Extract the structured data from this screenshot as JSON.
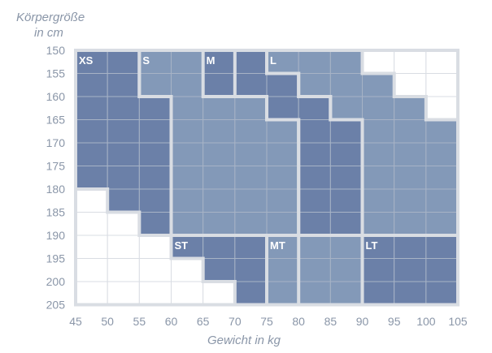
{
  "chart_data": {
    "type": "heatmap",
    "xlabel": "Gewicht in kg",
    "ylabel": [
      "Körpergröße",
      "in cm"
    ],
    "x_ticks": [
      45,
      50,
      55,
      60,
      65,
      70,
      75,
      80,
      85,
      90,
      95,
      100,
      105
    ],
    "y_ticks": [
      150,
      155,
      160,
      165,
      170,
      175,
      180,
      185,
      190,
      195,
      200,
      205
    ],
    "xlim": [
      45,
      105
    ],
    "ylim": [
      150,
      205
    ],
    "cell_size": {
      "weight_kg": 5,
      "height_cm": 5
    },
    "colors": {
      "dark": "#6b80a8",
      "light": "#8399b8",
      "empty": "#ffffff",
      "grid": "#a7b3c6",
      "border": "#d9dde3"
    },
    "regions": [
      {
        "name": "XS",
        "tone": "dark",
        "cells": [
          [
            45,
            150
          ],
          [
            50,
            150
          ],
          [
            45,
            155
          ],
          [
            50,
            155
          ],
          [
            45,
            160
          ],
          [
            50,
            160
          ],
          [
            55,
            160
          ],
          [
            45,
            165
          ],
          [
            50,
            165
          ],
          [
            55,
            165
          ],
          [
            45,
            170
          ],
          [
            50,
            170
          ],
          [
            55,
            170
          ],
          [
            45,
            175
          ],
          [
            50,
            175
          ],
          [
            55,
            175
          ],
          [
            50,
            180
          ],
          [
            55,
            180
          ],
          [
            55,
            185
          ]
        ]
      },
      {
        "name": "S",
        "tone": "light",
        "cells": [
          [
            55,
            150
          ],
          [
            60,
            150
          ],
          [
            65,
            150
          ],
          [
            55,
            155
          ],
          [
            60,
            155
          ],
          [
            65,
            155
          ],
          [
            60,
            160
          ],
          [
            65,
            160
          ],
          [
            70,
            160
          ],
          [
            60,
            165
          ],
          [
            65,
            165
          ],
          [
            70,
            165
          ],
          [
            75,
            165
          ],
          [
            60,
            170
          ],
          [
            65,
            170
          ],
          [
            70,
            170
          ],
          [
            75,
            170
          ],
          [
            60,
            175
          ],
          [
            65,
            175
          ],
          [
            70,
            175
          ],
          [
            75,
            175
          ],
          [
            60,
            180
          ],
          [
            65,
            180
          ],
          [
            70,
            180
          ],
          [
            75,
            180
          ],
          [
            60,
            185
          ],
          [
            65,
            185
          ],
          [
            70,
            185
          ],
          [
            75,
            185
          ]
        ]
      },
      {
        "name": "M",
        "tone": "dark",
        "cells": [
          [
            65,
            150
          ],
          [
            70,
            150
          ],
          [
            65,
            155
          ],
          [
            70,
            155
          ],
          [
            75,
            155
          ],
          [
            75,
            160
          ],
          [
            80,
            160
          ],
          [
            80,
            165
          ],
          [
            85,
            165
          ],
          [
            80,
            170
          ],
          [
            85,
            170
          ],
          [
            80,
            175
          ],
          [
            85,
            175
          ],
          [
            80,
            180
          ],
          [
            85,
            180
          ],
          [
            80,
            185
          ],
          [
            85,
            185
          ]
        ]
      },
      {
        "name": "L",
        "tone": "light",
        "cells": [
          [
            75,
            150
          ],
          [
            80,
            150
          ],
          [
            85,
            150
          ],
          [
            80,
            155
          ],
          [
            85,
            155
          ],
          [
            90,
            155
          ],
          [
            85,
            160
          ],
          [
            90,
            160
          ],
          [
            95,
            160
          ],
          [
            90,
            165
          ],
          [
            95,
            165
          ],
          [
            100,
            165
          ],
          [
            90,
            170
          ],
          [
            95,
            170
          ],
          [
            100,
            170
          ],
          [
            90,
            175
          ],
          [
            95,
            175
          ],
          [
            100,
            175
          ],
          [
            90,
            180
          ],
          [
            95,
            180
          ],
          [
            100,
            180
          ],
          [
            90,
            185
          ],
          [
            95,
            185
          ],
          [
            100,
            185
          ]
        ]
      },
      {
        "name": "ST",
        "tone": "dark",
        "cells": [
          [
            60,
            190
          ],
          [
            65,
            190
          ],
          [
            70,
            190
          ],
          [
            75,
            190
          ],
          [
            65,
            195
          ],
          [
            70,
            195
          ],
          [
            75,
            195
          ],
          [
            70,
            200
          ],
          [
            75,
            200
          ]
        ]
      },
      {
        "name": "MT",
        "tone": "light",
        "cells": [
          [
            75,
            190
          ],
          [
            80,
            190
          ],
          [
            85,
            190
          ],
          [
            75,
            195
          ],
          [
            80,
            195
          ],
          [
            85,
            195
          ],
          [
            75,
            200
          ],
          [
            80,
            200
          ],
          [
            85,
            200
          ]
        ]
      },
      {
        "name": "LT",
        "tone": "dark",
        "cells": [
          [
            90,
            190
          ],
          [
            95,
            190
          ],
          [
            100,
            190
          ],
          [
            90,
            195
          ],
          [
            95,
            195
          ],
          [
            100,
            195
          ],
          [
            90,
            200
          ],
          [
            95,
            200
          ],
          [
            100,
            200
          ]
        ]
      }
    ],
    "region_labels": [
      {
        "text": "XS",
        "weight": 45,
        "height": 150
      },
      {
        "text": "S",
        "weight": 55,
        "height": 150
      },
      {
        "text": "M",
        "weight": 65,
        "height": 150
      },
      {
        "text": "L",
        "weight": 75,
        "height": 150
      },
      {
        "text": "ST",
        "weight": 60,
        "height": 190
      },
      {
        "text": "MT",
        "weight": 75,
        "height": 190
      },
      {
        "text": "LT",
        "weight": 90,
        "height": 190
      }
    ]
  }
}
